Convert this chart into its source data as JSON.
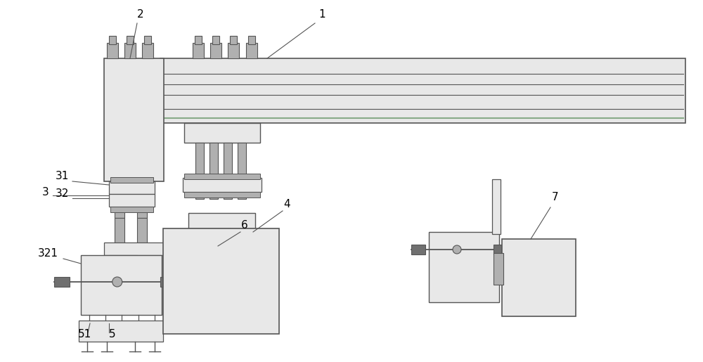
{
  "bg_color": "#ffffff",
  "lc": "#555555",
  "fill_light": "#e8e8e8",
  "fill_mid": "#b0b0b0",
  "fill_dark": "#707070",
  "fill_green": "#88aa88",
  "figsize": [
    10.0,
    5.15
  ],
  "dpi": 100
}
